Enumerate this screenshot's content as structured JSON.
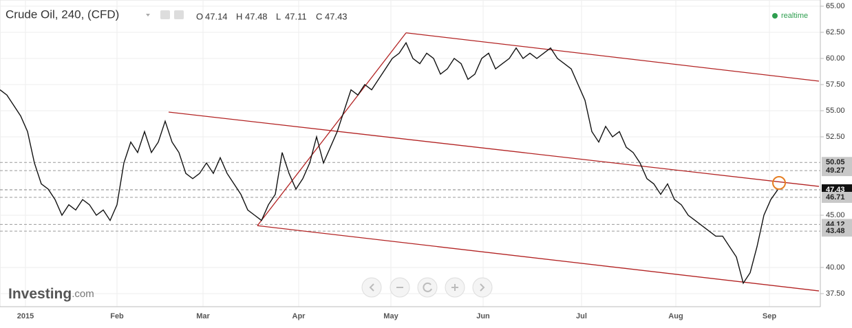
{
  "chart_data": {
    "type": "line",
    "title": "Crude Oil, 240, (CFD)",
    "ohlc": [
      {
        "key": "O",
        "value": "47.14"
      },
      {
        "key": "H",
        "value": "47.48"
      },
      {
        "key": "L",
        "value": "47.11"
      },
      {
        "key": "C",
        "value": "47.43"
      }
    ],
    "status": "realtime",
    "logo": {
      "brand": "Investing",
      "suffix": ".com"
    },
    "series": [
      {
        "name": "Crude Oil",
        "color": "#111111",
        "values": [
          57,
          56.5,
          55.5,
          54.5,
          53,
          50,
          48,
          47.5,
          46.5,
          45,
          46,
          45.5,
          46.5,
          46,
          45,
          45.5,
          44.5,
          46,
          50,
          52,
          51,
          53,
          51,
          52,
          54,
          52,
          51,
          49,
          48.5,
          49,
          50,
          49,
          50.5,
          49,
          48,
          47,
          45.5,
          45,
          44.5,
          46,
          47,
          51,
          49,
          47.5,
          48.5,
          50,
          52.5,
          50,
          51.5,
          53,
          55,
          57,
          56.5,
          57.5,
          57,
          58,
          59,
          60,
          60.5,
          61.5,
          60,
          59.5,
          60.5,
          60,
          58.5,
          59,
          60,
          59.5,
          58,
          58.5,
          60,
          60.5,
          59,
          59.5,
          60,
          61,
          60,
          60.5,
          60,
          60.5,
          61,
          60,
          59.5,
          59,
          57.5,
          56,
          53,
          52,
          53.5,
          52.5,
          53,
          51.5,
          51,
          50,
          48.5,
          48,
          47,
          48,
          46.5,
          46,
          45,
          44.5,
          44,
          43.5,
          43,
          43,
          42,
          41,
          38.5,
          39.5,
          42,
          45,
          46.5,
          47.43
        ]
      }
    ],
    "xlim": [
      0,
      119
    ],
    "xticks": [
      {
        "value": 3.7,
        "label": "2015"
      },
      {
        "value": 17,
        "label": "Feb"
      },
      {
        "value": 29.5,
        "label": "Mar"
      },
      {
        "value": 43.4,
        "label": "Apr"
      },
      {
        "value": 56.8,
        "label": "May"
      },
      {
        "value": 70.2,
        "label": "Jun"
      },
      {
        "value": 84.5,
        "label": "Jul"
      },
      {
        "value": 98.2,
        "label": "Aug"
      },
      {
        "value": 111.8,
        "label": "Sep"
      }
    ],
    "ylim": [
      37.5,
      65
    ],
    "yticks": [
      {
        "value": 65,
        "label": "65.00"
      },
      {
        "value": 62.5,
        "label": "62.50"
      },
      {
        "value": 60,
        "label": "60.00"
      },
      {
        "value": 57.5,
        "label": "57.50"
      },
      {
        "value": 55,
        "label": "55.00"
      },
      {
        "value": 52.5,
        "label": "52.50"
      },
      {
        "value": 45,
        "label": "45.00"
      },
      {
        "value": 40,
        "label": "40.00"
      },
      {
        "value": 37.5,
        "label": "37.50"
      }
    ],
    "grid": true,
    "levels": [
      {
        "value": 50.05,
        "label": "50.05"
      },
      {
        "value": 49.27,
        "label": "49.27"
      },
      {
        "value": 47.44,
        "label": "47.44"
      },
      {
        "value": 47.43,
        "label": "47.43",
        "current": true
      },
      {
        "value": 46.71,
        "label": "46.71"
      },
      {
        "value": 44.12,
        "label": "44.12"
      },
      {
        "value": 43.48,
        "label": "43.48"
      }
    ],
    "trendlines": [
      {
        "color": "#b22222",
        "x": [
          37.4,
          59
        ],
        "y": [
          44.0,
          62.45
        ]
      },
      {
        "color": "#b22222",
        "x": [
          59,
          119
        ],
        "y": [
          62.45,
          57.83
        ]
      },
      {
        "color": "#b22222",
        "x": [
          24.5,
          119
        ],
        "y": [
          54.87,
          47.76
        ]
      },
      {
        "color": "#b22222",
        "x": [
          37.4,
          119
        ],
        "y": [
          44.0,
          37.76
        ]
      }
    ]
  }
}
